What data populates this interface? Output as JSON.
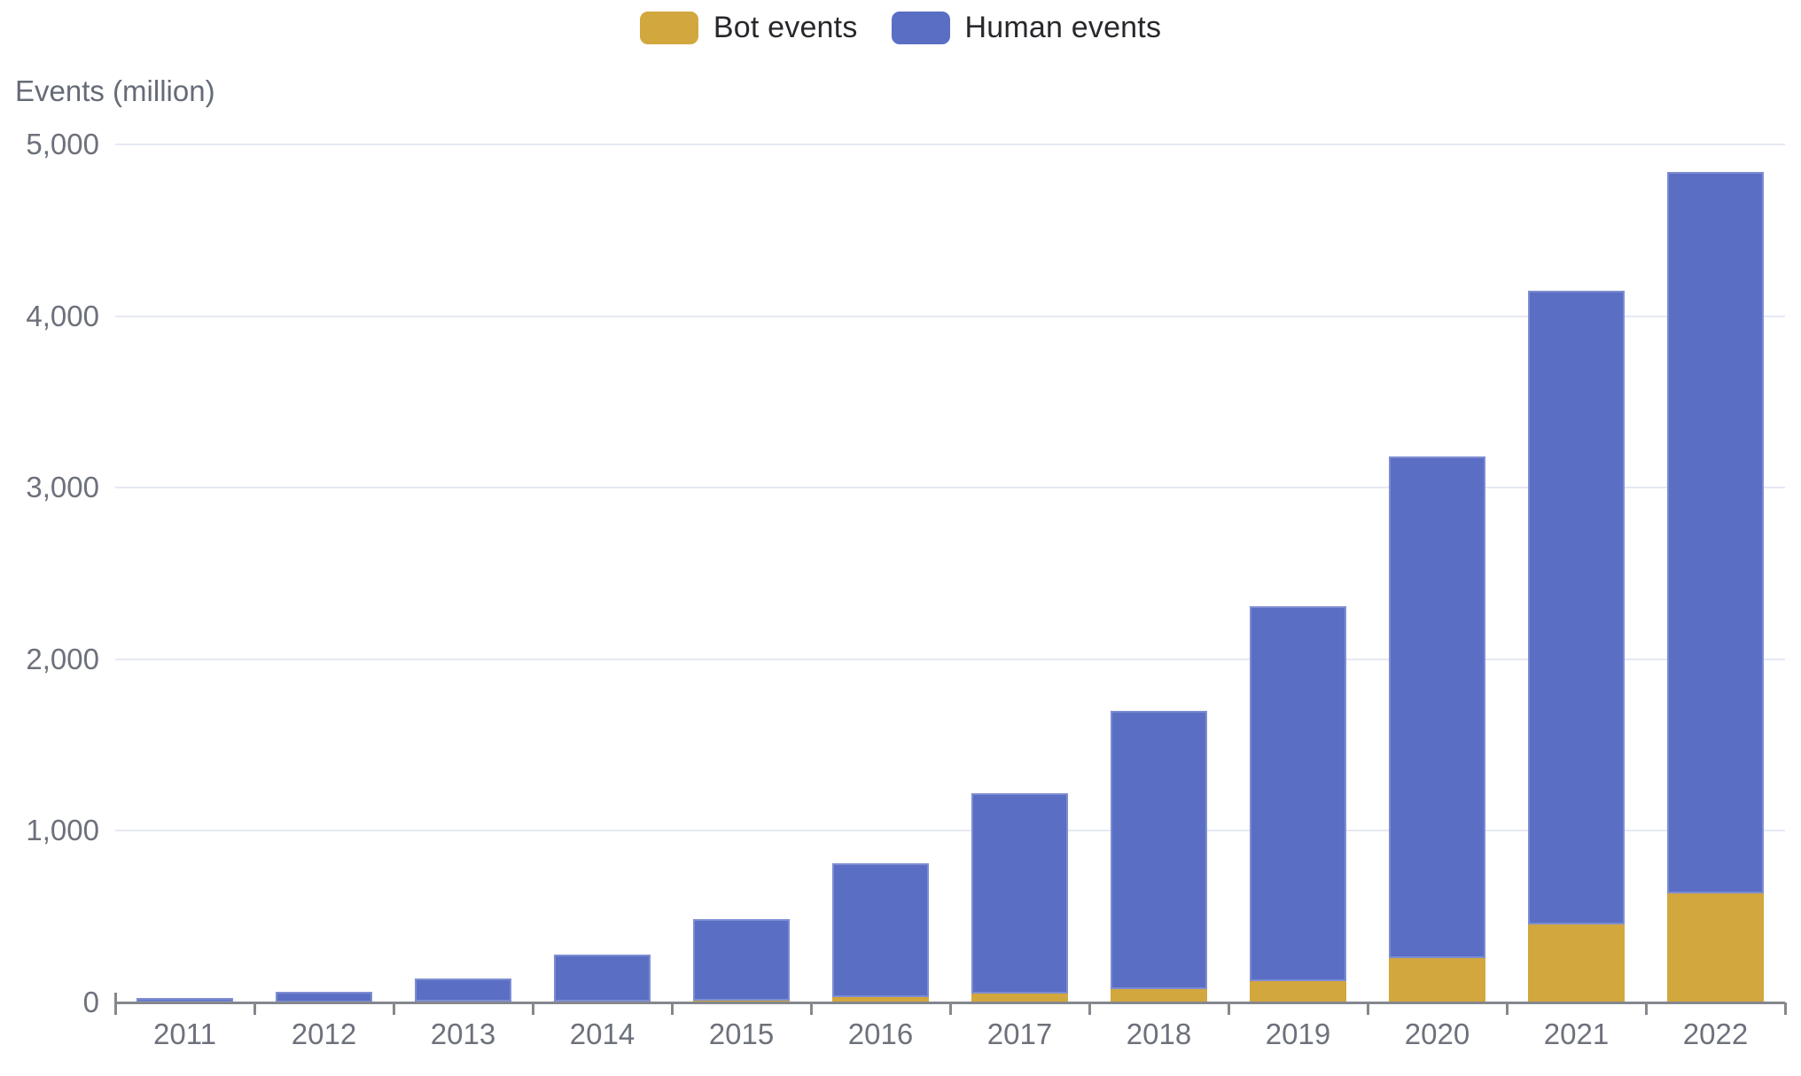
{
  "legend": {
    "items": [
      {
        "label": "Bot events",
        "color": "#d2a73e"
      },
      {
        "label": "Human events",
        "color": "#5a6ec4"
      }
    ]
  },
  "y_axis": {
    "title": "Events (million)",
    "tick_labels": [
      "0",
      "1,000",
      "2,000",
      "3,000",
      "4,000",
      "5,000"
    ]
  },
  "chart_data": {
    "type": "bar",
    "stacked": true,
    "title": "",
    "xlabel": "",
    "ylabel": "Events (million)",
    "categories": [
      "2011",
      "2012",
      "2013",
      "2014",
      "2015",
      "2016",
      "2017",
      "2018",
      "2019",
      "2020",
      "2021",
      "2022"
    ],
    "series": [
      {
        "name": "Bot events",
        "color": "#d2a73e",
        "values": [
          0,
          0,
          3,
          5,
          10,
          30,
          50,
          75,
          125,
          260,
          455,
          635
        ]
      },
      {
        "name": "Human events",
        "color": "#5a6ec4",
        "values": [
          25,
          60,
          137,
          275,
          475,
          780,
          1170,
          1625,
          2185,
          2920,
          3695,
          4205
        ]
      }
    ],
    "totals": [
      25,
      60,
      140,
      280,
      485,
      810,
      1220,
      1700,
      2310,
      3180,
      4150,
      4840
    ],
    "ylim": [
      0,
      5000
    ],
    "yticks": [
      0,
      1000,
      2000,
      3000,
      4000,
      5000
    ],
    "grid": true,
    "legend_position": "top-center"
  }
}
